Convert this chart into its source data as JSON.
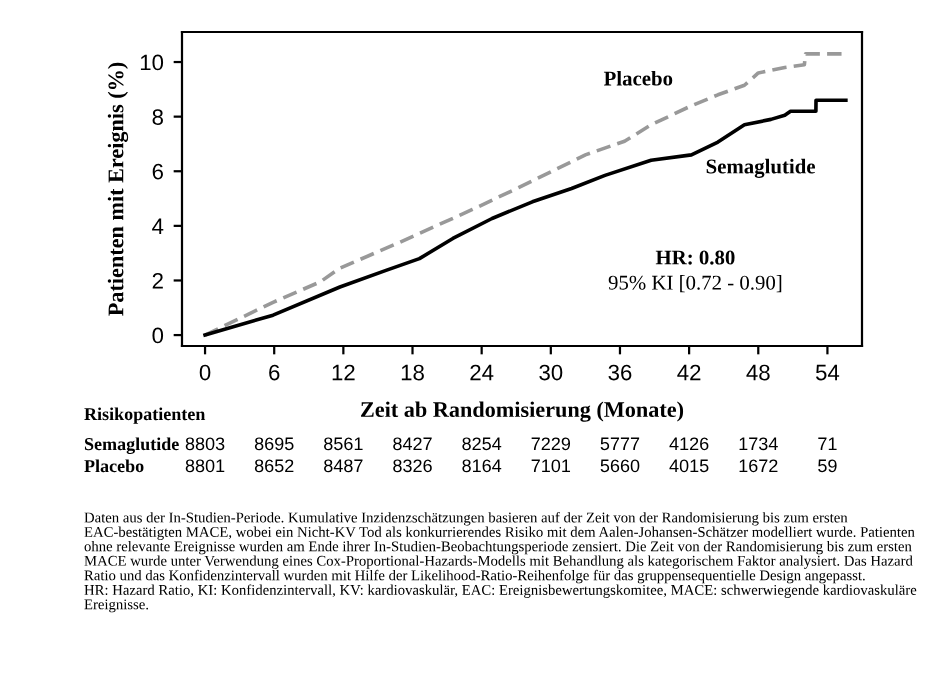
{
  "chart_data": {
    "type": "line",
    "ylabel": "Patienten mit Ereignis (%)",
    "xlabel": "Zeit ab Randomisierung (Monate)",
    "xlim": [
      -2,
      57
    ],
    "xticks": [
      0,
      6,
      12,
      18,
      24,
      30,
      36,
      42,
      48,
      54
    ],
    "ylim": [
      -0.4,
      11.1
    ],
    "yticks": [
      0,
      2,
      4,
      6,
      8,
      10
    ],
    "grid": false,
    "legend": false,
    "series": [
      {
        "name": "Placebo",
        "color": "#999999",
        "line_style": "dashed",
        "x": [
          0,
          5.9,
          10,
          11.7,
          16.9,
          23.2,
          27.2,
          33,
          36.4,
          38.7,
          42.2,
          44.5,
          46.8,
          48,
          50.3,
          52,
          52.1,
          55.4
        ],
        "values": [
          0,
          1.2,
          1.95,
          2.45,
          3.4,
          4.6,
          5.4,
          6.6,
          7.1,
          7.7,
          8.4,
          8.8,
          9.15,
          9.6,
          9.8,
          9.9,
          10.3,
          10.3
        ]
      },
      {
        "name": "Semaglutide",
        "color": "#000000",
        "line_style": "solid",
        "x": [
          0,
          5.9,
          11.7,
          15.7,
          18.6,
          21.5,
          24.9,
          28.4,
          31.8,
          34.7,
          38.7,
          42.2,
          44.5,
          46.8,
          49.1,
          50.3,
          50.8,
          53,
          53.01,
          55.6
        ],
        "values": [
          0,
          0.73,
          1.76,
          2.37,
          2.8,
          3.54,
          4.27,
          4.88,
          5.37,
          5.85,
          6.4,
          6.6,
          7.07,
          7.7,
          7.9,
          8.05,
          8.2,
          8.2,
          8.6,
          8.6
        ]
      }
    ],
    "annotations": [
      "HR: 0.80",
      "95% KI [0.72 - 0.90]",
      "Risikopatienten",
      "Semaglutide",
      "8803",
      "8695",
      "8561",
      "8427",
      "8254",
      "7229",
      "5777",
      "4126",
      "1734",
      "71",
      "Placebo",
      "8801",
      "8652",
      "8487",
      "8326",
      "8164",
      "7101",
      "5660",
      "4015",
      "1672",
      "59",
      "Daten aus der In-Studien-Periode. Kumulative Inzidenzschätzungen basieren auf der Zeit von der Randomisierung bis zum ersten EAC-bestätigten MACE, wobei ein Nicht-KV Tod als konkurrierendes Risiko mit dem Aalen-Johansen-Schätzer modelliert wurde. Patienten ohne relevante Ereignisse wurden am Ende ihrer In-Studien-Beobachtungsperiode zensiert. Die Zeit von der Randomisierung bis zum ersten MACE wurde unter Verwendung eines Cox-Proportional-Hazards-Modells mit Behandlung als kategorischem Faktor analysiert. Das Hazard Ratio und das Konfidenzintervall wurden mit Hilfe der Likelihood-Ratio-Reihenfolge für das gruppensequentielle Design angepasst.\nHR: Hazard Ratio, KI: Konfidenzintervall, KV: kardiovaskulär, EAC: Ereignisbewertungskomitee, MACE: schwerwiegende kardiovaskuläre Ereignisse."
    ]
  }
}
